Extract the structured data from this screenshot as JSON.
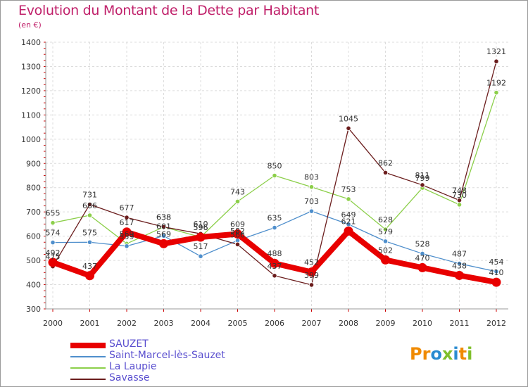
{
  "header": {
    "title": "Evolution du Montant de la Dette par Habitant",
    "unit": "(en €)"
  },
  "brand": {
    "letters": [
      "P",
      "r",
      "o",
      "x",
      "i",
      "t",
      "i"
    ],
    "colors": [
      "#f08a00",
      "#f08a00",
      "#2a8bd0",
      "#7fbf2a",
      "#2a8bd0",
      "#f08a00",
      "#7fbf2a"
    ]
  },
  "chart_data": {
    "type": "line",
    "title": "Evolution du Montant de la Dette par Habitant",
    "subtitle": "(en €)",
    "xlabel": "",
    "ylabel": "",
    "categories": [
      "2000",
      "2001",
      "2002",
      "2003",
      "2004",
      "2005",
      "2006",
      "2007",
      "2008",
      "2009",
      "2010",
      "2011",
      "2012"
    ],
    "ylim": [
      300,
      1400
    ],
    "yticks": [
      300,
      400,
      500,
      600,
      700,
      800,
      900,
      1000,
      1100,
      1200,
      1300,
      1400
    ],
    "grid": true,
    "legend": "bottom-left",
    "series": [
      {
        "name": "SAUZET",
        "color": "#e80000",
        "values": [
          492,
          437,
          617,
          569,
          596,
          609,
          488,
          452,
          621,
          502,
          470,
          438,
          410
        ],
        "labels": [
          "492",
          "437",
          "617",
          "569",
          "596",
          "609",
          "488",
          "452",
          "621",
          "502",
          "470",
          "438",
          "410"
        ]
      },
      {
        "name": "Saint-Marcel-lès-Sauzet",
        "color": "#4f8fcc",
        "values": [
          574,
          575,
          559,
          601,
          517,
          582,
          635,
          703,
          649,
          579,
          528,
          487,
          454
        ],
        "labels": [
          "574",
          "575",
          "559",
          "601",
          "517",
          "582",
          "635",
          "703",
          "649",
          "579",
          "528",
          "487",
          "454"
        ]
      },
      {
        "name": "La Laupie",
        "color": "#8ccf4a",
        "values": [
          655,
          686,
          569,
          638,
          596,
          743,
          850,
          803,
          753,
          628,
          799,
          730,
          1192
        ],
        "labels": [
          "655",
          "686",
          "569",
          "638",
          "596",
          "743",
          "850",
          "803",
          "753",
          "628",
          "799",
          "730",
          "1192"
        ]
      },
      {
        "name": "Savasse",
        "color": "#6b1d1d",
        "values": [
          475,
          731,
          677,
          638,
          610,
          566,
          437,
          399,
          1045,
          862,
          811,
          748,
          1321
        ],
        "labels": [
          "475",
          "731",
          "677",
          "638",
          "610",
          "566",
          "437",
          "399",
          "1045",
          "862",
          "811",
          "748",
          "1321"
        ]
      }
    ]
  }
}
